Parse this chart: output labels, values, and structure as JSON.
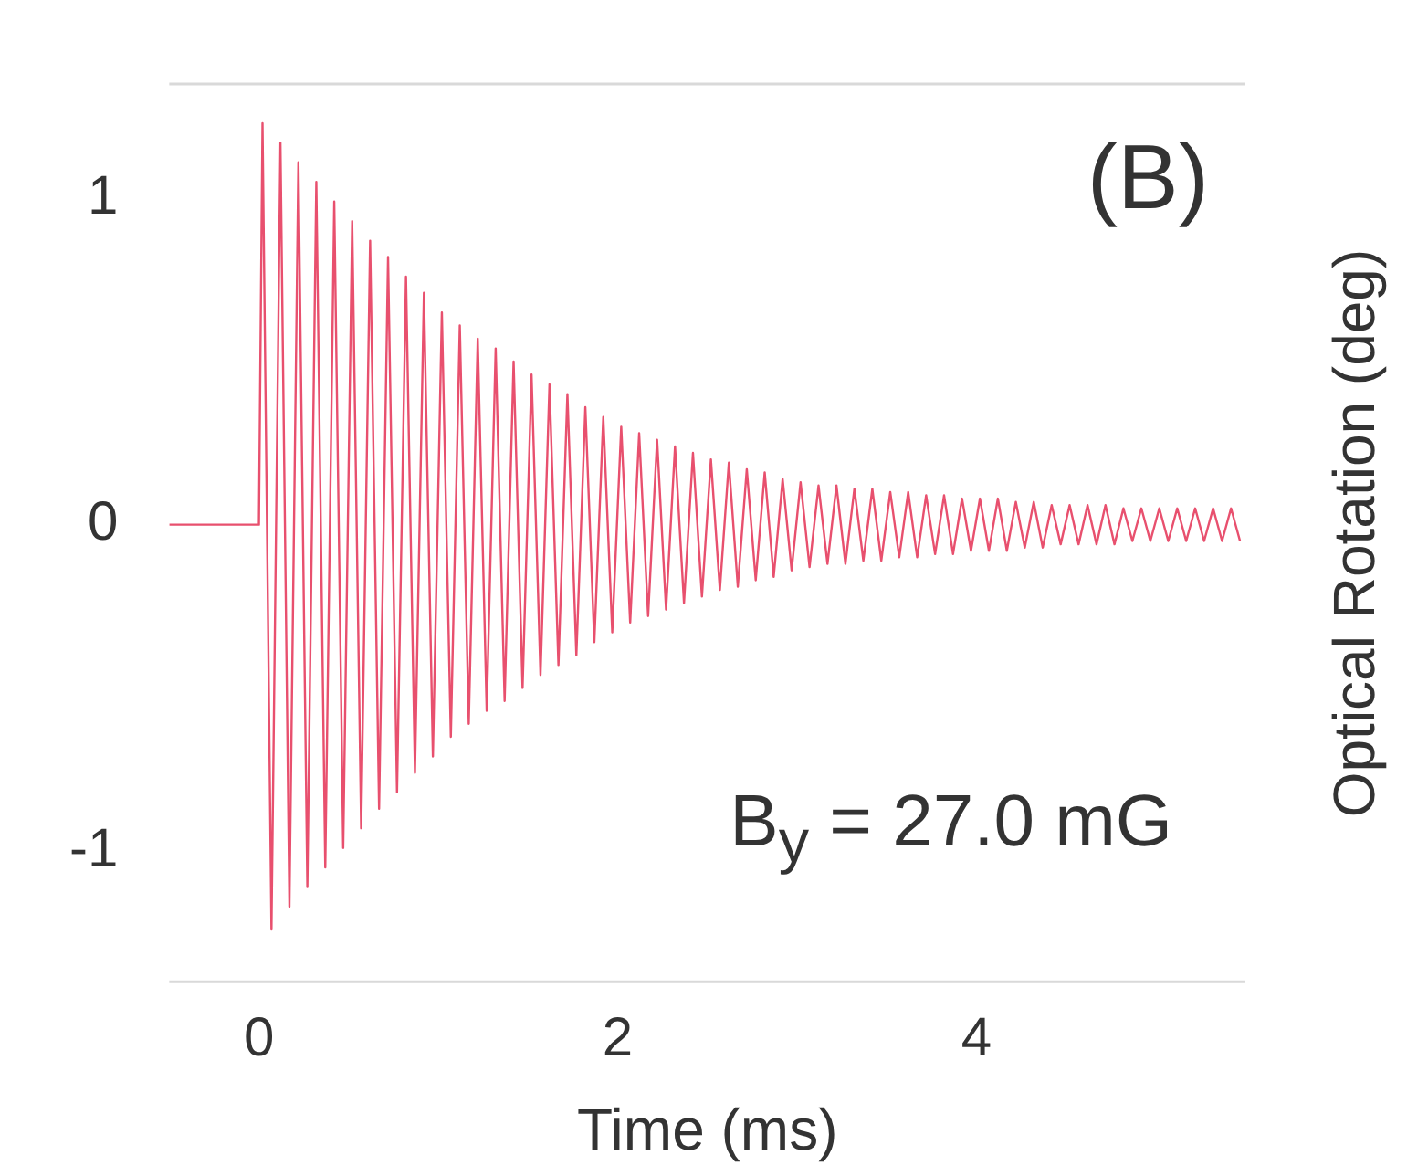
{
  "chart_data": {
    "type": "line",
    "xlabel": "Time (ms)",
    "ylabel": "Optical Rotation (deg)",
    "annotations": [
      "(B)",
      "B$_{y}$ = 27.0 mG"
    ],
    "x": [
      -0.5,
      0,
      0.02,
      0.07,
      0.12,
      0.17,
      0.22,
      0.27,
      0.32,
      0.37,
      0.42,
      0.47,
      0.52,
      0.57,
      0.62,
      0.67,
      0.72,
      0.77,
      0.82,
      0.87,
      0.92,
      0.97,
      1.02,
      1.07,
      1.12,
      1.17,
      1.22,
      1.27,
      1.32,
      1.37,
      1.42,
      1.47,
      1.52,
      1.57,
      1.62,
      1.67,
      1.72,
      1.77,
      1.82,
      1.87,
      1.92,
      1.97,
      2.02,
      2.07,
      2.12,
      2.17,
      2.22,
      2.27,
      2.32,
      2.37,
      2.42,
      2.47,
      2.52,
      2.57,
      2.62,
      2.67,
      2.72,
      2.77,
      2.82,
      2.87,
      2.92,
      2.97,
      3.02,
      3.07,
      3.12,
      3.17,
      3.22,
      3.27,
      3.32,
      3.37,
      3.42,
      3.47,
      3.52,
      3.57,
      3.62,
      3.67,
      3.72,
      3.77,
      3.82,
      3.87,
      3.92,
      3.97,
      4.02,
      4.07,
      4.12,
      4.17,
      4.22,
      4.27,
      4.32,
      4.37,
      4.42,
      4.47,
      4.52,
      4.57,
      4.62,
      4.67,
      4.72,
      4.77,
      4.82,
      4.87,
      4.92,
      4.97,
      5.02,
      5.07,
      5.12,
      5.17,
      5.22,
      5.27,
      5.32,
      5.37,
      5.42,
      5.47
    ],
    "series": [
      {
        "color": "#e8506e",
        "values": [
          0,
          0,
          1.23,
          -1.24,
          1.17,
          -1.17,
          1.11,
          -1.11,
          1.05,
          -1.05,
          0.99,
          -0.99,
          0.93,
          -0.93,
          0.87,
          -0.87,
          0.82,
          -0.82,
          0.76,
          -0.76,
          0.71,
          -0.71,
          0.65,
          -0.65,
          0.61,
          -0.61,
          0.57,
          -0.57,
          0.54,
          -0.54,
          0.5,
          -0.5,
          0.46,
          -0.46,
          0.43,
          -0.43,
          0.4,
          -0.4,
          0.36,
          -0.36,
          0.33,
          -0.33,
          0.3,
          -0.3,
          0.28,
          -0.28,
          0.26,
          -0.26,
          0.24,
          -0.24,
          0.22,
          -0.22,
          0.2,
          -0.2,
          0.19,
          -0.19,
          0.17,
          -0.17,
          0.16,
          -0.16,
          0.14,
          -0.14,
          0.13,
          -0.13,
          0.12,
          -0.12,
          0.12,
          -0.12,
          0.11,
          -0.11,
          0.11,
          -0.11,
          0.1,
          -0.1,
          0.1,
          -0.1,
          0.09,
          -0.09,
          0.09,
          -0.09,
          0.08,
          -0.08,
          0.08,
          -0.08,
          0.08,
          -0.08,
          0.07,
          -0.07,
          0.07,
          -0.07,
          0.06,
          -0.06,
          0.06,
          -0.06,
          0.06,
          -0.06,
          0.06,
          -0.06,
          0.05,
          -0.05,
          0.05,
          -0.05,
          0.05,
          -0.05,
          0.05,
          -0.05,
          0.05,
          -0.05,
          0.05,
          -0.05,
          0.05,
          -0.05
        ]
      }
    ],
    "xlim": [
      -0.5,
      5.5
    ],
    "xticks": [
      0,
      2,
      4
    ],
    "ylim": [
      -1.4,
      1.35
    ],
    "yticks": [
      -1,
      0,
      1
    ],
    "grid": false,
    "legend": false,
    "marker": "none",
    "line_style": "solid"
  }
}
